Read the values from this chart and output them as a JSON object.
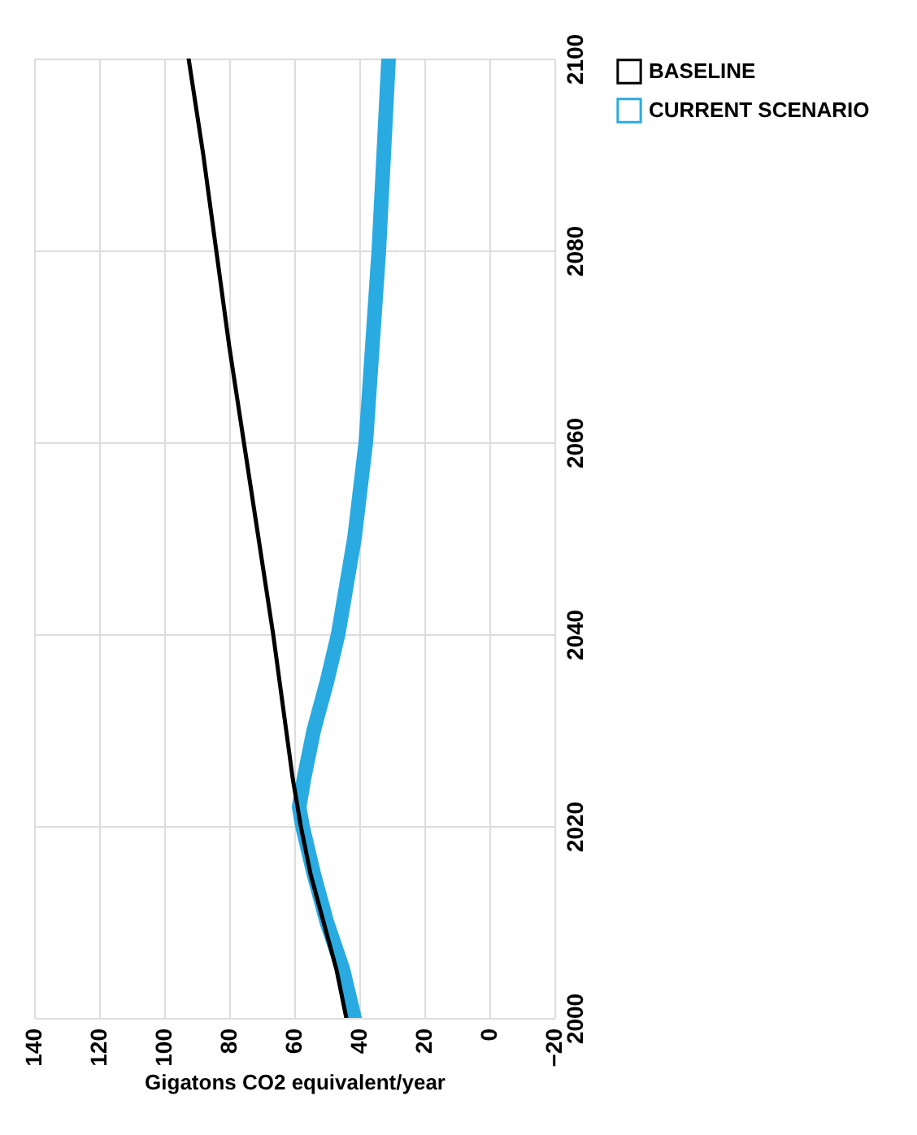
{
  "chart_data": {
    "type": "line",
    "orientation": "horizontal",
    "xlabel": "Gigatons CO2 equivalent/year",
    "x": [
      2000,
      2005,
      2010,
      2015,
      2020,
      2022,
      2025,
      2030,
      2035,
      2040,
      2050,
      2060,
      2070,
      2080,
      2090,
      2100
    ],
    "series": [
      {
        "name": "BASELINE",
        "color": "#000000",
        "values": [
          44,
          47,
          51,
          55,
          58,
          59,
          60.5,
          62.5,
          64.5,
          66.5,
          71,
          75.5,
          80,
          84,
          88,
          92.5
        ]
      },
      {
        "name": "CURRENT SCENARIO",
        "color": "#29abe2",
        "values": [
          41.5,
          45,
          50,
          54,
          57.5,
          58.5,
          57,
          54,
          50,
          46.5,
          41.5,
          38,
          36,
          34,
          32.5,
          31
        ]
      }
    ],
    "xlim": [
      140,
      -20
    ],
    "xticks": [
      140,
      120,
      100,
      80,
      60,
      40,
      20,
      0,
      -20
    ],
    "ylim": [
      2000,
      2100
    ],
    "yticks": [
      2000,
      2020,
      2040,
      2060,
      2080,
      2100
    ],
    "grid": true,
    "legend": "right",
    "line_style": "solid",
    "marker": "none"
  }
}
